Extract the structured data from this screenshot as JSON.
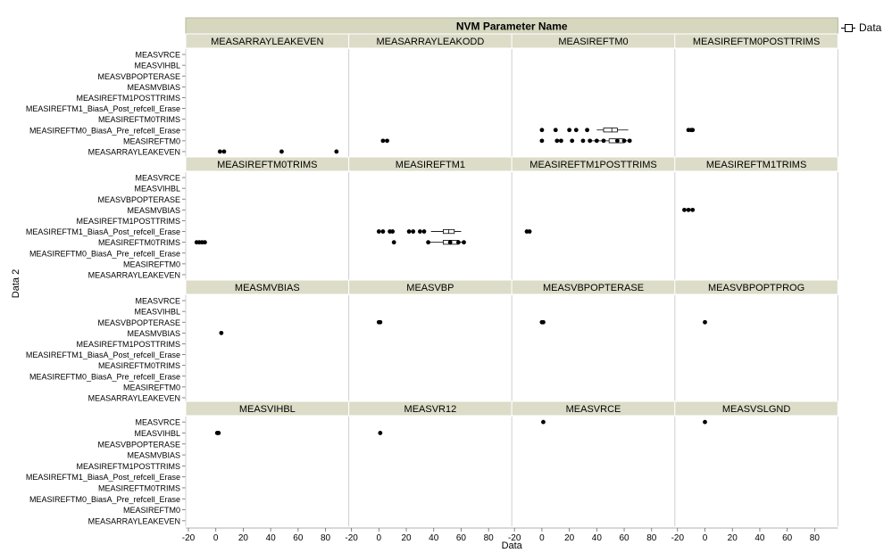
{
  "chart_data": {
    "type": "scatter",
    "title": "NVM Parameter Name",
    "xlabel": "Data",
    "ylabel": "Data 2",
    "xlim": [
      -20,
      95
    ],
    "xticks": [
      "-20",
      "0",
      "20",
      "40",
      "60",
      "80"
    ],
    "yticks": [
      "MEASVRCE",
      "MEASVIHBL",
      "MEASVBPOPTERASE",
      "MEASMVBIAS",
      "MEASIREFTM1POSTTRIMS",
      "MEASIREFTM1_BiasA_Post_refcell_Erase",
      "MEASIREFTM0TRIMS",
      "MEASIREFTM0_BiasA_Pre_refcell_Erase",
      "MEASIREFTM0",
      "MEASARRAYLEAKEVEN"
    ],
    "legend": {
      "label": "Data",
      "placement": "top-right"
    },
    "panel_rows": [
      {
        "yticks": [
          "MEASVRCE",
          "MEASVIHBL",
          "MEASVBPOPTERASE",
          "MEASMVBIAS",
          "MEASIREFTM1POSTTRIMS",
          "MEASIREFTM1_BiasA_Post_refcell_Erase",
          "MEASIREFTM0TRIMS",
          "MEASIREFTM0_BiasA_Pre_refcell_Erase",
          "MEASIREFTM0",
          "MEASARRAYLEAKEVEN"
        ],
        "panels": [
          {
            "title": "MEASARRAYLEAKEVEN",
            "points": [
              [
                3,
                "MEASARRAYLEAKEVEN"
              ],
              [
                6,
                "MEASARRAYLEAKEVEN"
              ],
              [
                48,
                "MEASARRAYLEAKEVEN"
              ],
              [
                88,
                "MEASARRAYLEAKEVEN"
              ]
            ]
          },
          {
            "title": "MEASARRAYLEAKODD",
            "points": [
              [
                3,
                "MEASIREFTM0"
              ],
              [
                6,
                "MEASIREFTM0"
              ]
            ]
          },
          {
            "title": "MEASIREFTM0",
            "points": [
              [
                0,
                "MEASIREFTM0_BiasA_Pre_refcell_Erase"
              ],
              [
                10,
                "MEASIREFTM0_BiasA_Pre_refcell_Erase"
              ],
              [
                20,
                "MEASIREFTM0_BiasA_Pre_refcell_Erase"
              ],
              [
                25,
                "MEASIREFTM0_BiasA_Pre_refcell_Erase"
              ],
              [
                33,
                "MEASIREFTM0_BiasA_Pre_refcell_Erase"
              ],
              [
                0,
                "MEASIREFTM0"
              ],
              [
                11,
                "MEASIREFTM0"
              ],
              [
                14,
                "MEASIREFTM0"
              ],
              [
                22,
                "MEASIREFTM0"
              ],
              [
                30,
                "MEASIREFTM0"
              ],
              [
                35,
                "MEASIREFTM0"
              ],
              [
                40,
                "MEASIREFTM0"
              ],
              [
                45,
                "MEASIREFTM0"
              ],
              [
                55,
                "MEASIREFTM0"
              ],
              [
                60,
                "MEASIREFTM0"
              ],
              [
                64,
                "MEASIREFTM0"
              ]
            ],
            "boxes": [
              {
                "y": "MEASIREFTM0_BiasA_Pre_refcell_Erase",
                "min": 40,
                "q1": 45,
                "median": 51,
                "q3": 55,
                "max": 63
              },
              {
                "y": "MEASIREFTM0",
                "min": 36,
                "q1": 49,
                "median": 55,
                "q3": 60,
                "max": 64
              }
            ]
          },
          {
            "title": "MEASIREFTM0POSTTRIMS",
            "points": [
              [
                -12,
                "MEASIREFTM0_BiasA_Pre_refcell_Erase"
              ],
              [
                -10,
                "MEASIREFTM0_BiasA_Pre_refcell_Erase"
              ],
              [
                -9,
                "MEASIREFTM0_BiasA_Pre_refcell_Erase"
              ]
            ]
          }
        ]
      },
      {
        "yticks": [
          "MEASVRCE",
          "MEASVIHBL",
          "MEASVBPOPTERASE",
          "MEASMVBIAS",
          "MEASIREFTM1POSTTRIMS",
          "MEASIREFTM1_BiasA_Post_refcell_Erase",
          "MEASIREFTM0TRIMS",
          "MEASIREFTM0_BiasA_Pre_refcell_Erase",
          "MEASIREFTM0",
          "MEASARRAYLEAKEVEN"
        ],
        "panels": [
          {
            "title": "MEASIREFTM0TRIMS",
            "points": [
              [
                -14,
                "MEASIREFTM0TRIMS"
              ],
              [
                -12,
                "MEASIREFTM0TRIMS"
              ],
              [
                -10,
                "MEASIREFTM0TRIMS"
              ],
              [
                -8,
                "MEASIREFTM0TRIMS"
              ]
            ]
          },
          {
            "title": "MEASIREFTM1",
            "points": [
              [
                0,
                "MEASIREFTM1_BiasA_Post_refcell_Erase"
              ],
              [
                3,
                "MEASIREFTM1_BiasA_Post_refcell_Erase"
              ],
              [
                8,
                "MEASIREFTM1_BiasA_Post_refcell_Erase"
              ],
              [
                10,
                "MEASIREFTM1_BiasA_Post_refcell_Erase"
              ],
              [
                22,
                "MEASIREFTM1_BiasA_Post_refcell_Erase"
              ],
              [
                25,
                "MEASIREFTM1_BiasA_Post_refcell_Erase"
              ],
              [
                30,
                "MEASIREFTM1_BiasA_Post_refcell_Erase"
              ],
              [
                33,
                "MEASIREFTM1_BiasA_Post_refcell_Erase"
              ],
              [
                11,
                "MEASIREFTM0TRIMS"
              ],
              [
                36,
                "MEASIREFTM0TRIMS"
              ],
              [
                52,
                "MEASIREFTM0TRIMS"
              ],
              [
                58,
                "MEASIREFTM0TRIMS"
              ],
              [
                62,
                "MEASIREFTM0TRIMS"
              ]
            ],
            "boxes": [
              {
                "y": "MEASIREFTM1_BiasA_Post_refcell_Erase",
                "min": 38,
                "q1": 47,
                "median": 51,
                "q3": 55,
                "max": 60
              },
              {
                "y": "MEASIREFTM0TRIMS",
                "min": 36,
                "q1": 47,
                "median": 53,
                "q3": 58,
                "max": 63
              }
            ]
          },
          {
            "title": "MEASIREFTM1POSTTRIMS",
            "points": [
              [
                -11,
                "MEASIREFTM1_BiasA_Post_refcell_Erase"
              ],
              [
                -9,
                "MEASIREFTM1_BiasA_Post_refcell_Erase"
              ]
            ]
          },
          {
            "title": "MEASIREFTM1TRIMS",
            "points": [
              [
                -15,
                "MEASMVBIAS"
              ],
              [
                -12,
                "MEASMVBIAS"
              ],
              [
                -9,
                "MEASMVBIAS"
              ]
            ]
          }
        ]
      },
      {
        "yticks": [
          "MEASVRCE",
          "MEASVIHBL",
          "MEASVBPOPTERASE",
          "MEASMVBIAS",
          "MEASIREFTM1POSTTRIMS",
          "MEASIREFTM1_BiasA_Post_refcell_Erase",
          "MEASIREFTM0TRIMS",
          "MEASIREFTM0_BiasA_Pre_refcell_Erase",
          "MEASIREFTM0",
          "MEASARRAYLEAKEVEN"
        ],
        "panels": [
          {
            "title": "MEASMVBIAS",
            "points": [
              [
                4,
                "MEASMVBIAS"
              ]
            ]
          },
          {
            "title": "MEASVBP",
            "points": [
              [
                0,
                "MEASVBPOPTERASE"
              ],
              [
                1,
                "MEASVBPOPTERASE"
              ]
            ]
          },
          {
            "title": "MEASVBPOPTERASE",
            "points": [
              [
                0,
                "MEASVBPOPTERASE"
              ],
              [
                1,
                "MEASVBPOPTERASE"
              ]
            ]
          },
          {
            "title": "MEASVBPOPTPROG",
            "points": [
              [
                0,
                "MEASVBPOPTERASE"
              ]
            ]
          }
        ]
      },
      {
        "yticks": [
          "MEASVRCE",
          "MEASVIHBL",
          "MEASVBPOPTERASE",
          "MEASMVBIAS",
          "MEASIREFTM1POSTTRIMS",
          "MEASIREFTM1_BiasA_Post_refcell_Erase",
          "MEASIREFTM0TRIMS",
          "MEASIREFTM0_BiasA_Pre_refcell_Erase",
          "MEASIREFTM0",
          "MEASARRAYLEAKEVEN"
        ],
        "panels": [
          {
            "title": "MEASVIHBL",
            "points": [
              [
                1,
                "MEASVIHBL"
              ],
              [
                2,
                "MEASVIHBL"
              ]
            ]
          },
          {
            "title": "MEASVR12",
            "points": [
              [
                1,
                "MEASVIHBL"
              ]
            ]
          },
          {
            "title": "MEASVRCE",
            "points": [
              [
                1,
                "MEASVRCE"
              ]
            ]
          },
          {
            "title": "MEASVSLGND",
            "points": [
              [
                0,
                "MEASVRCE"
              ]
            ]
          }
        ]
      }
    ]
  }
}
